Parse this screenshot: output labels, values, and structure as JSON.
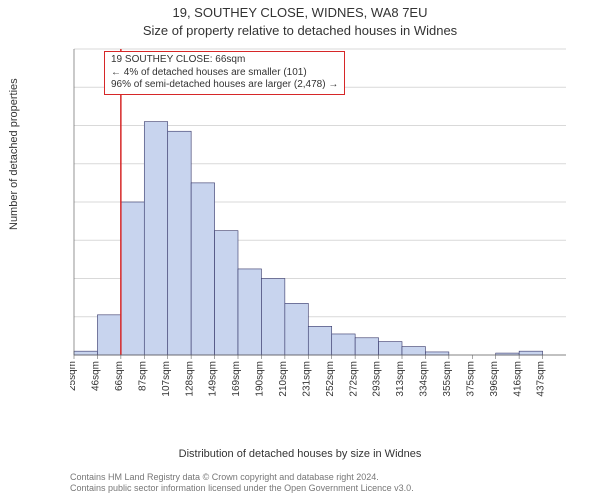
{
  "title": {
    "line1": "19, SOUTHEY CLOSE, WIDNES, WA8 7EU",
    "line2": "Size of property relative to detached houses in Widnes"
  },
  "y_axis_label": "Number of detached properties",
  "x_axis_label": "Distribution of detached houses by size in Widnes",
  "chart": {
    "type": "histogram",
    "bar_fill": "#c8d4ee",
    "bar_stroke": "#333366",
    "reference_line_color": "#d62728",
    "grid_color": "#d9d9d9",
    "background_color": "#ffffff",
    "ylim": [
      0,
      800
    ],
    "ytick_step": 100,
    "yticks": [
      0,
      100,
      200,
      300,
      400,
      500,
      600,
      700,
      800
    ],
    "x_categories": [
      "25sqm",
      "46sqm",
      "66sqm",
      "87sqm",
      "107sqm",
      "128sqm",
      "149sqm",
      "169sqm",
      "190sqm",
      "210sqm",
      "231sqm",
      "252sqm",
      "272sqm",
      "293sqm",
      "313sqm",
      "334sqm",
      "355sqm",
      "375sqm",
      "396sqm",
      "416sqm",
      "437sqm"
    ],
    "values": [
      10,
      105,
      400,
      610,
      585,
      450,
      325,
      225,
      200,
      135,
      75,
      55,
      45,
      35,
      22,
      8,
      0,
      0,
      5,
      10,
      0
    ],
    "reference_index": 2
  },
  "annotation": {
    "line1": "19 SOUTHEY CLOSE: 66sqm",
    "line2": "← 4% of detached houses are smaller (101)",
    "line3": "96% of semi-detached houses are larger (2,478) →"
  },
  "footer": {
    "line1": "Contains HM Land Registry data © Crown copyright and database right 2024.",
    "line2": "Contains public sector information licensed under the Open Government Licence v3.0."
  }
}
